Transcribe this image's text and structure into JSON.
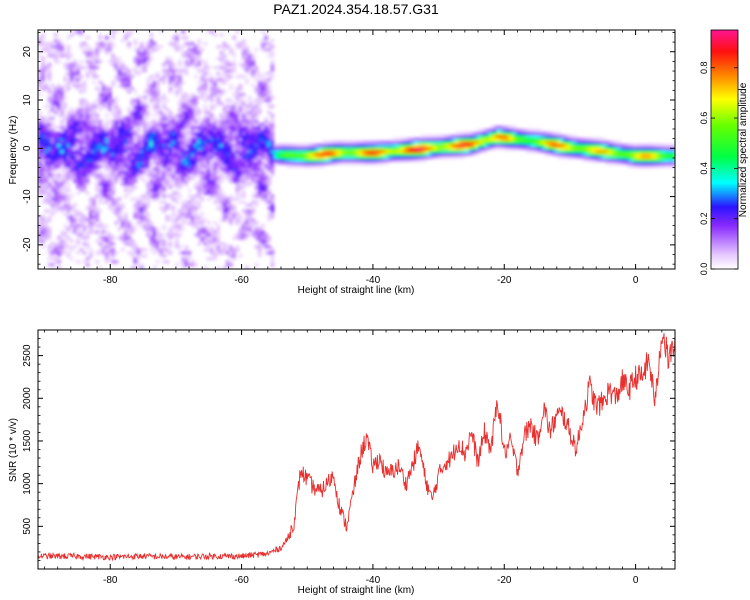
{
  "title": "PAZ1.2024.354.18.57.G31",
  "chart_data": [
    {
      "type": "heatmap",
      "xlabel": "Height of straight line (km)",
      "ylabel": "Frequency (Hz)",
      "xlim": [
        -91,
        6
      ],
      "ylim": [
        -25,
        24.5
      ],
      "xticks": [
        -80,
        -60,
        -40,
        -20,
        0
      ],
      "yticks": [
        -20,
        -10,
        0,
        10,
        20
      ],
      "colorbar": {
        "label": "Normalized spectral amplitude",
        "range": [
          0,
          0.95
        ],
        "ticks": [
          0.0,
          0.2,
          0.4,
          0.6,
          0.8
        ],
        "tick_labels": [
          "0.0",
          "0.2",
          "0.4",
          "0.6",
          "0.8"
        ]
      },
      "ridge": {
        "x": [
          -55,
          -50,
          -45,
          -40,
          -35,
          -30,
          -25,
          -21,
          -18,
          -15,
          -10,
          -5,
          0,
          6
        ],
        "freq": [
          -1.2,
          -1.5,
          -0.8,
          -0.8,
          -0.3,
          0.3,
          0.9,
          2.5,
          2.0,
          1.5,
          0.3,
          -0.5,
          -1.5,
          -1.5
        ],
        "amplitude": [
          0.4,
          0.9,
          0.85,
          0.85,
          0.95,
          0.9,
          0.9,
          0.95,
          0.6,
          0.8,
          0.85,
          0.75,
          0.8,
          0.7
        ]
      },
      "noise_region": {
        "x_range": [
          -90,
          -55
        ],
        "amplitude_range": [
          0.0,
          0.25
        ]
      }
    },
    {
      "type": "line",
      "xlabel": "Height of straight line (km)",
      "ylabel": "SNR (10 * v/v)",
      "xlim": [
        -91,
        6
      ],
      "ylim": [
        0,
        2800
      ],
      "xticks": [
        -80,
        -60,
        -40,
        -20,
        0
      ],
      "yticks": [
        500,
        1000,
        1500,
        2000,
        2500
      ],
      "color": "#e8302e",
      "series": [
        {
          "x": [
            -91,
            -85,
            -80,
            -75,
            -70,
            -65,
            -60,
            -56,
            -54,
            -53,
            -52,
            -51.5,
            -51,
            -50,
            -49,
            -48,
            -46,
            -45,
            -44,
            -43,
            -42,
            -41,
            -40,
            -39,
            -38,
            -37,
            -36,
            -35,
            -34,
            -33,
            -32,
            -31,
            -30,
            -29,
            -28,
            -27,
            -26,
            -25,
            -24,
            -23,
            -22,
            -21,
            -20,
            -19,
            -18,
            -17,
            -16,
            -15,
            -14,
            -13,
            -12,
            -11,
            -10,
            -9,
            -8,
            -7,
            -6,
            -5,
            -4,
            -3,
            -2,
            -1,
            0,
            1,
            2,
            3,
            4,
            5,
            6
          ],
          "y": [
            150,
            150,
            140,
            150,
            140,
            150,
            150,
            180,
            250,
            350,
            550,
            850,
            1150,
            1050,
            950,
            900,
            1100,
            700,
            500,
            900,
            1300,
            1550,
            1200,
            1300,
            1100,
            1150,
            1200,
            1000,
            1200,
            1450,
            1050,
            800,
            1100,
            1250,
            1300,
            1500,
            1350,
            1600,
            1250,
            1600,
            1400,
            2000,
            1350,
            1500,
            1150,
            1550,
            1700,
            1500,
            1900,
            1600,
            1800,
            1800,
            1600,
            1400,
            1800,
            2150,
            1900,
            1950,
            2100,
            2000,
            2200,
            2100,
            2250,
            2250,
            2450,
            1950,
            2800,
            2450,
            2650
          ]
        }
      ]
    }
  ]
}
